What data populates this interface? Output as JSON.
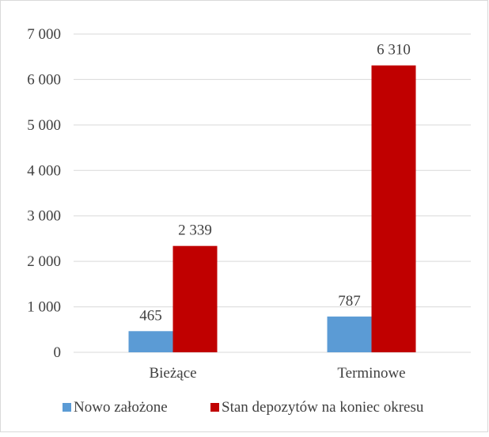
{
  "chart_data": {
    "type": "bar",
    "categories": [
      "Bieżące",
      "Terminowe"
    ],
    "series": [
      {
        "name": "Nowo założone",
        "values": [
          465,
          787
        ],
        "color": "#5b9bd5",
        "labels": [
          "465",
          "787"
        ]
      },
      {
        "name": "Stan depozytów na koniec okresu",
        "values": [
          2339,
          6310
        ],
        "color": "#c00000",
        "labels": [
          "2 339",
          "6 310"
        ]
      }
    ],
    "ylim": [
      0,
      7000
    ],
    "yticks": [
      0,
      1000,
      2000,
      3000,
      4000,
      5000,
      6000,
      7000
    ],
    "ytick_labels": [
      "0",
      "1 000",
      "2 000",
      "3 000",
      "4 000",
      "5 000",
      "6 000",
      "7 000"
    ],
    "grid": true,
    "legend_position": "bottom"
  }
}
